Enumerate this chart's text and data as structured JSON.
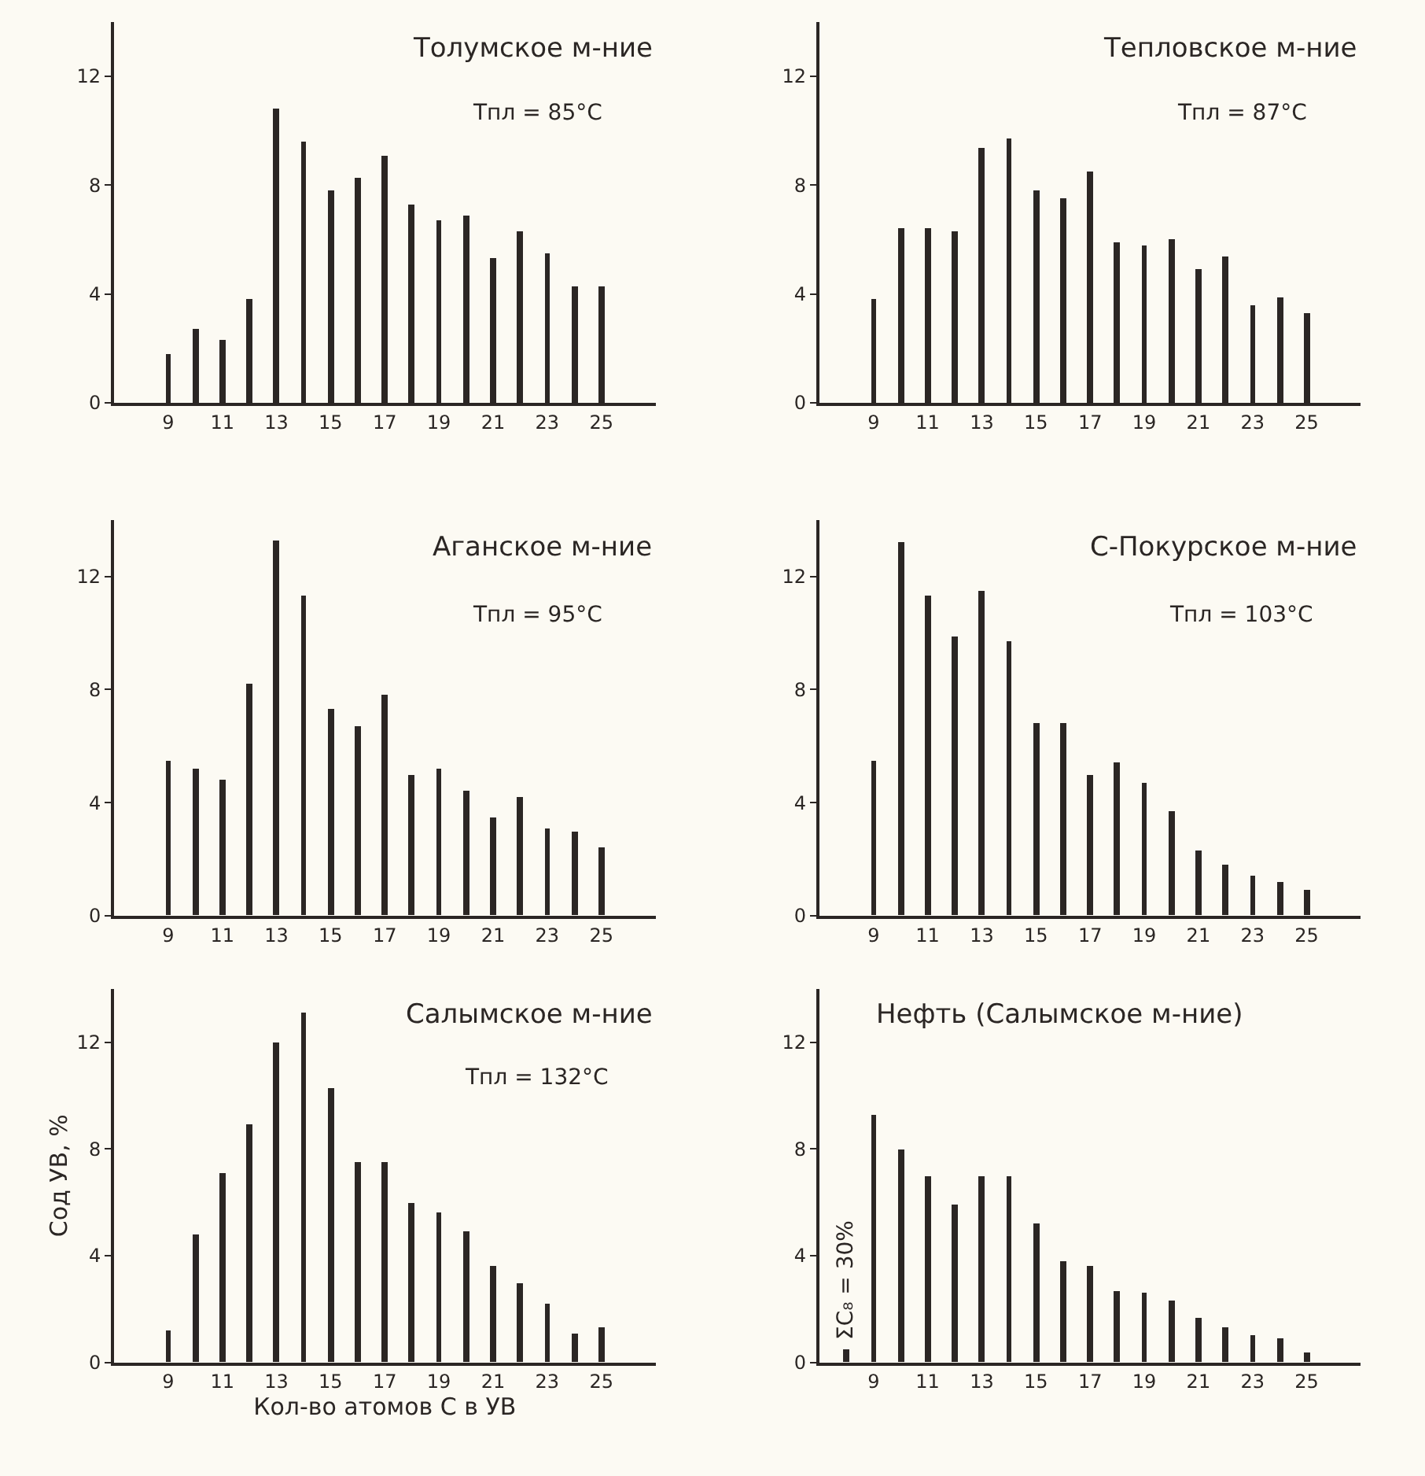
{
  "chart_data": [
    {
      "type": "bar",
      "title": "Толумское м-ние",
      "annotations": [
        "Тпл = 85°C"
      ],
      "x": [
        9,
        10,
        11,
        12,
        13,
        14,
        15,
        16,
        17,
        18,
        19,
        20,
        21,
        22,
        23,
        24,
        25
      ],
      "color": "#2b2624",
      "values": [
        1.8,
        2.7,
        2.3,
        3.8,
        10.8,
        9.6,
        7.8,
        8.3,
        9.1,
        7.3,
        6.7,
        6.9,
        5.3,
        6.3,
        5.5,
        4.3,
        4.3
      ],
      "xlim": [
        7,
        27
      ],
      "xticks": [
        9,
        11,
        13,
        15,
        17,
        19,
        21,
        23,
        25
      ],
      "ylim": [
        0,
        14
      ],
      "yticks": [
        0,
        4,
        8,
        12
      ],
      "grid": false
    },
    {
      "type": "bar",
      "title": "Тепловское м-ние",
      "annotations": [
        "Тпл = 87°C"
      ],
      "x": [
        9,
        10,
        11,
        12,
        13,
        14,
        15,
        16,
        17,
        18,
        19,
        20,
        21,
        22,
        23,
        24,
        25
      ],
      "color": "#2b2624",
      "values": [
        3.8,
        6.4,
        6.4,
        6.3,
        9.4,
        9.7,
        7.8,
        7.5,
        8.5,
        5.9,
        5.8,
        6.0,
        4.9,
        5.4,
        3.6,
        3.9,
        3.3
      ],
      "xlim": [
        7,
        27
      ],
      "xticks": [
        9,
        11,
        13,
        15,
        17,
        19,
        21,
        23,
        25
      ],
      "ylim": [
        0,
        14
      ],
      "yticks": [
        0,
        4,
        8,
        12
      ],
      "grid": false
    },
    {
      "type": "bar",
      "title": "Аганское м-ние",
      "annotations": [
        "Тпл = 95°C"
      ],
      "x": [
        9,
        10,
        11,
        12,
        13,
        14,
        15,
        16,
        17,
        18,
        19,
        20,
        21,
        22,
        23,
        24,
        25
      ],
      "color": "#2b2624",
      "values": [
        5.5,
        5.2,
        4.8,
        8.2,
        13.3,
        11.3,
        7.3,
        6.7,
        7.8,
        5.0,
        5.2,
        4.4,
        3.5,
        4.2,
        3.1,
        3.0,
        2.4
      ],
      "xlim": [
        7,
        27
      ],
      "xticks": [
        9,
        11,
        13,
        15,
        17,
        19,
        21,
        23,
        25
      ],
      "ylim": [
        0,
        14
      ],
      "yticks": [
        0,
        4,
        8,
        12
      ],
      "grid": false
    },
    {
      "type": "bar",
      "title": "С-Покурское м-ние",
      "annotations": [
        "Тпл = 103°C"
      ],
      "x": [
        9,
        10,
        11,
        12,
        13,
        14,
        15,
        16,
        17,
        18,
        19,
        20,
        21,
        22,
        23,
        24,
        25
      ],
      "color": "#2b2624",
      "values": [
        5.5,
        13.2,
        11.3,
        9.9,
        11.5,
        9.7,
        6.8,
        6.8,
        5.0,
        5.4,
        4.7,
        3.7,
        2.3,
        1.8,
        1.4,
        1.2,
        0.9
      ],
      "xlim": [
        7,
        27
      ],
      "xticks": [
        9,
        11,
        13,
        15,
        17,
        19,
        21,
        23,
        25
      ],
      "ylim": [
        0,
        14
      ],
      "yticks": [
        0,
        4,
        8,
        12
      ],
      "grid": false
    },
    {
      "type": "bar",
      "title": "Салымское м-ние",
      "annotations": [
        "Тпл = 132°C"
      ],
      "xlabel": "Кол-во атомов C в УВ",
      "ylabel": "Сод УВ, %",
      "x": [
        9,
        10,
        11,
        12,
        13,
        14,
        15,
        16,
        17,
        18,
        19,
        20,
        21,
        22,
        23,
        24,
        25
      ],
      "color": "#2b2624",
      "values": [
        1.2,
        4.8,
        7.1,
        8.9,
        12.0,
        13.1,
        10.3,
        7.5,
        7.5,
        6.0,
        5.6,
        4.9,
        3.6,
        3.0,
        2.2,
        1.1,
        1.3
      ],
      "xlim": [
        7,
        27
      ],
      "xticks": [
        9,
        11,
        13,
        15,
        17,
        19,
        21,
        23,
        25
      ],
      "ylim": [
        0,
        14
      ],
      "yticks": [
        0,
        4,
        8,
        12
      ],
      "grid": false
    },
    {
      "type": "bar",
      "title": "Нефть (Салымское м-ние)",
      "annotations": [
        {
          "text": "ΣC₈ = 30%",
          "x": 8,
          "y": 0.5
        }
      ],
      "x": [
        8,
        9,
        10,
        11,
        12,
        13,
        14,
        15,
        16,
        17,
        18,
        19,
        20,
        21,
        22,
        23,
        24,
        25
      ],
      "color": "#2b2624",
      "values": [
        0.5,
        9.3,
        8.0,
        7.0,
        5.9,
        7.0,
        7.0,
        5.2,
        3.8,
        3.6,
        2.7,
        2.6,
        2.3,
        1.7,
        1.3,
        1.0,
        0.9,
        0.4
      ],
      "xlim": [
        7,
        27
      ],
      "xticks": [
        9,
        11,
        13,
        15,
        17,
        19,
        21,
        23,
        25
      ],
      "ylim": [
        0,
        14
      ],
      "yticks": [
        0,
        4,
        8,
        12
      ],
      "grid": false
    }
  ]
}
